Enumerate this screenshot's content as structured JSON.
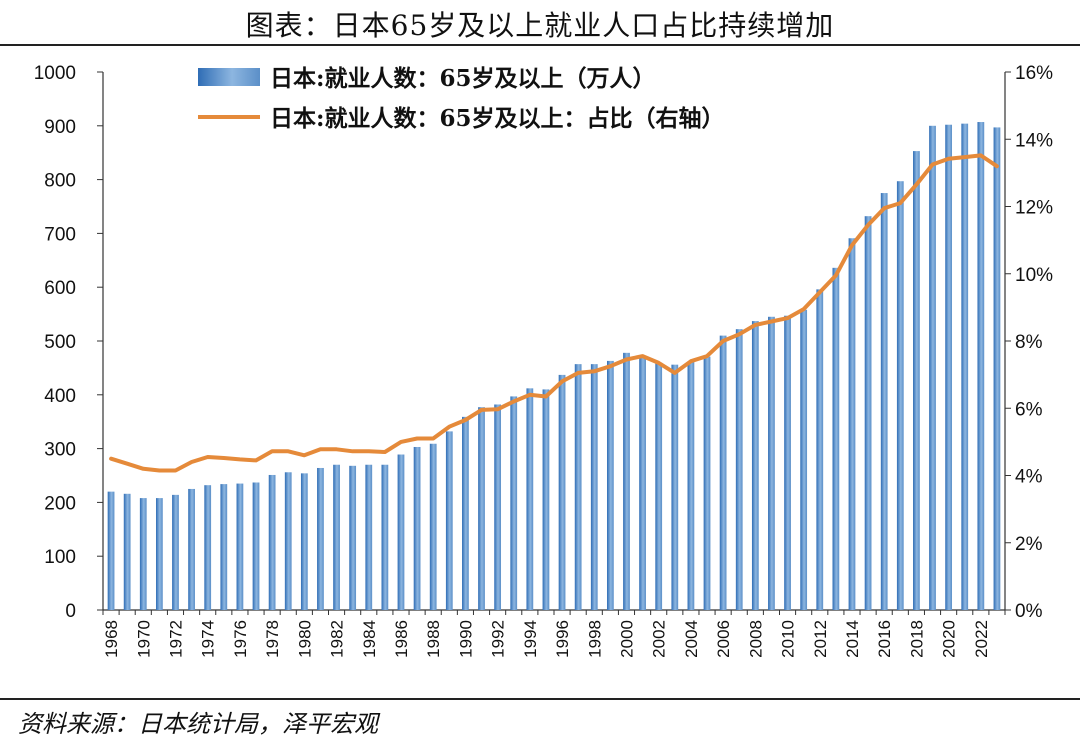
{
  "title": "图表：日本65岁及以上就业人口占比持续增加",
  "source": "资料来源：日本统计局，泽平宏观",
  "chart_data": {
    "type": "bar",
    "x": [
      1968,
      1969,
      1970,
      1971,
      1972,
      1973,
      1974,
      1975,
      1976,
      1977,
      1978,
      1979,
      1980,
      1981,
      1982,
      1983,
      1984,
      1985,
      1986,
      1987,
      1988,
      1989,
      1990,
      1991,
      1992,
      1993,
      1994,
      1995,
      1996,
      1997,
      1998,
      1999,
      2000,
      2001,
      2002,
      2003,
      2004,
      2005,
      2006,
      2007,
      2008,
      2009,
      2010,
      2011,
      2012,
      2013,
      2014,
      2015,
      2016,
      2017,
      2018,
      2019,
      2020,
      2021,
      2022,
      2023
    ],
    "xtick_labels": [
      "1968",
      "1970",
      "1972",
      "1974",
      "1976",
      "1978",
      "1980",
      "1982",
      "1984",
      "1986",
      "1988",
      "1990",
      "1992",
      "1994",
      "1996",
      "1998",
      "2000",
      "2002",
      "2004",
      "2006",
      "2008",
      "2010",
      "2012",
      "2014",
      "2016",
      "2018",
      "2020",
      "2022"
    ],
    "y_left_ticks": [
      "0",
      "100",
      "200",
      "300",
      "400",
      "500",
      "600",
      "700",
      "800",
      "900",
      "1000"
    ],
    "y_right_ticks": [
      "0%",
      "2%",
      "4%",
      "6%",
      "8%",
      "10%",
      "12%",
      "14%",
      "16%"
    ],
    "ylim_left": [
      0,
      1000
    ],
    "ylim_right": [
      0,
      16
    ],
    "grid": false,
    "legend_position": "top-left",
    "series": [
      {
        "name": "日本:就业人数：65岁及以上（万人）",
        "kind": "bar",
        "axis": "left",
        "color": "#5b8fc8",
        "values": [
          220,
          216,
          208,
          208,
          214,
          225,
          232,
          234,
          235,
          237,
          251,
          256,
          254,
          264,
          270,
          268,
          270,
          270,
          289,
          303,
          309,
          332,
          359,
          377,
          382,
          397,
          412,
          410,
          437,
          457,
          457,
          463,
          478,
          470,
          460,
          456,
          461,
          471,
          510,
          522,
          537,
          545,
          547,
          558,
          596,
          636,
          691,
          732,
          775,
          797,
          853,
          900,
          902,
          904,
          907,
          897
        ]
      },
      {
        "name": "日本:就业人数：65岁及以上：占比（右轴）",
        "kind": "line",
        "axis": "right",
        "color": "#e58a3a",
        "values": [
          4.5,
          4.35,
          4.2,
          4.15,
          4.15,
          4.4,
          4.55,
          4.52,
          4.48,
          4.45,
          4.72,
          4.72,
          4.6,
          4.78,
          4.78,
          4.72,
          4.72,
          4.7,
          5.0,
          5.1,
          5.1,
          5.45,
          5.65,
          5.95,
          5.97,
          6.2,
          6.4,
          6.35,
          6.8,
          7.05,
          7.1,
          7.25,
          7.45,
          7.55,
          7.35,
          7.05,
          7.4,
          7.55,
          8.0,
          8.2,
          8.48,
          8.58,
          8.68,
          8.95,
          9.45,
          9.95,
          10.85,
          11.45,
          11.95,
          12.1,
          12.65,
          13.25,
          13.42,
          13.47,
          13.52,
          13.2
        ]
      }
    ]
  }
}
